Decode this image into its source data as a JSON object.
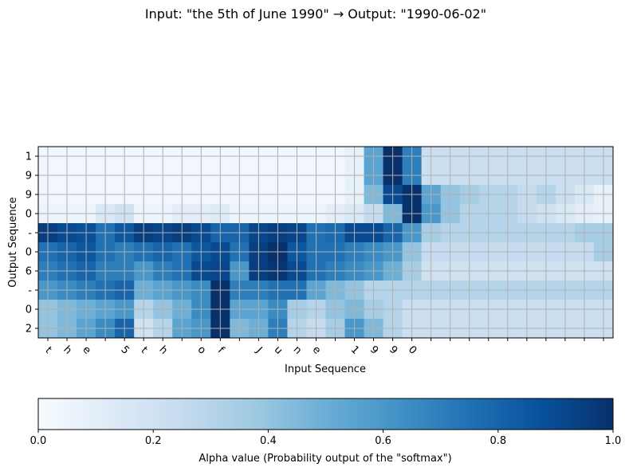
{
  "chart_data": {
    "type": "heatmap",
    "title": "Input: \"the 5th of June 1990\"  →  Output: \"1990-06-02\"",
    "xlabel": "Input Sequence",
    "ylabel": "Output Sequence",
    "x_tick_labels": [
      "t",
      "h",
      "e",
      " ",
      "5",
      "t",
      "h",
      " ",
      "o",
      "f",
      " ",
      "J",
      "u",
      "n",
      "e",
      " ",
      "1",
      "9",
      "9",
      "0",
      "",
      "",
      "",
      "",
      "",
      "",
      "",
      "",
      "",
      ""
    ],
    "y_tick_labels": [
      "1",
      "9",
      "9",
      "0",
      "-",
      "0",
      "6",
      "-",
      "0",
      "2"
    ],
    "colorbar": {
      "label": "Alpha value (Probability output of the \"softmax\")",
      "ticks": [
        "0.0",
        "0.2",
        "0.4",
        "0.6",
        "0.8",
        "1.0"
      ],
      "range": [
        0,
        1
      ],
      "colormap": "Blues"
    },
    "grid": true,
    "values": [
      [
        0.03,
        0.03,
        0.03,
        0.03,
        0.03,
        0.03,
        0.03,
        0.03,
        0.03,
        0.03,
        0.03,
        0.03,
        0.03,
        0.03,
        0.03,
        0.03,
        0.08,
        0.55,
        1.0,
        0.7,
        0.22,
        0.22,
        0.22,
        0.22,
        0.22,
        0.22,
        0.22,
        0.22,
        0.22,
        0.22
      ],
      [
        0.03,
        0.03,
        0.03,
        0.03,
        0.03,
        0.03,
        0.03,
        0.03,
        0.03,
        0.03,
        0.03,
        0.03,
        0.03,
        0.03,
        0.03,
        0.03,
        0.08,
        0.55,
        1.0,
        0.7,
        0.22,
        0.22,
        0.22,
        0.22,
        0.22,
        0.22,
        0.22,
        0.22,
        0.22,
        0.22
      ],
      [
        0.03,
        0.03,
        0.03,
        0.03,
        0.03,
        0.03,
        0.03,
        0.03,
        0.03,
        0.03,
        0.03,
        0.03,
        0.03,
        0.03,
        0.03,
        0.03,
        0.08,
        0.45,
        0.9,
        1.0,
        0.55,
        0.4,
        0.35,
        0.3,
        0.3,
        0.25,
        0.3,
        0.22,
        0.15,
        0.08
      ],
      [
        0.05,
        0.05,
        0.05,
        0.15,
        0.2,
        0.05,
        0.05,
        0.1,
        0.1,
        0.12,
        0.05,
        0.05,
        0.05,
        0.05,
        0.05,
        0.1,
        0.15,
        0.25,
        0.45,
        1.0,
        0.6,
        0.4,
        0.3,
        0.3,
        0.3,
        0.25,
        0.2,
        0.15,
        0.1,
        0.08
      ],
      [
        0.95,
        0.9,
        0.88,
        0.75,
        0.85,
        0.95,
        0.92,
        0.95,
        0.9,
        0.8,
        0.8,
        0.92,
        0.95,
        0.92,
        0.75,
        0.78,
        0.9,
        0.9,
        0.8,
        0.6,
        0.35,
        0.3,
        0.3,
        0.3,
        0.3,
        0.3,
        0.3,
        0.3,
        0.35,
        0.35
      ],
      [
        0.75,
        0.8,
        0.85,
        0.75,
        0.7,
        0.75,
        0.8,
        0.75,
        0.85,
        0.9,
        0.75,
        0.95,
        1.0,
        0.85,
        0.75,
        0.75,
        0.7,
        0.65,
        0.6,
        0.4,
        0.25,
        0.25,
        0.25,
        0.25,
        0.25,
        0.25,
        0.25,
        0.25,
        0.25,
        0.35
      ],
      [
        0.7,
        0.75,
        0.8,
        0.7,
        0.7,
        0.6,
        0.7,
        0.75,
        0.9,
        0.92,
        0.6,
        0.95,
        0.98,
        0.9,
        0.75,
        0.7,
        0.65,
        0.6,
        0.5,
        0.35,
        0.2,
        0.2,
        0.2,
        0.2,
        0.2,
        0.2,
        0.2,
        0.2,
        0.2,
        0.2
      ],
      [
        0.6,
        0.65,
        0.7,
        0.75,
        0.8,
        0.5,
        0.55,
        0.6,
        0.65,
        1.0,
        0.7,
        0.7,
        0.75,
        0.75,
        0.55,
        0.45,
        0.4,
        0.3,
        0.3,
        0.3,
        0.3,
        0.3,
        0.3,
        0.3,
        0.3,
        0.3,
        0.3,
        0.3,
        0.3,
        0.3
      ],
      [
        0.4,
        0.45,
        0.5,
        0.55,
        0.6,
        0.3,
        0.4,
        0.5,
        0.65,
        1.0,
        0.55,
        0.55,
        0.65,
        0.35,
        0.3,
        0.4,
        0.45,
        0.35,
        0.3,
        0.22,
        0.22,
        0.22,
        0.22,
        0.22,
        0.22,
        0.22,
        0.22,
        0.22,
        0.22,
        0.22
      ],
      [
        0.4,
        0.45,
        0.55,
        0.65,
        0.8,
        0.2,
        0.3,
        0.55,
        0.6,
        1.0,
        0.45,
        0.5,
        0.7,
        0.3,
        0.25,
        0.35,
        0.6,
        0.45,
        0.3,
        0.22,
        0.22,
        0.22,
        0.22,
        0.22,
        0.22,
        0.22,
        0.22,
        0.22,
        0.22,
        0.22
      ]
    ]
  }
}
